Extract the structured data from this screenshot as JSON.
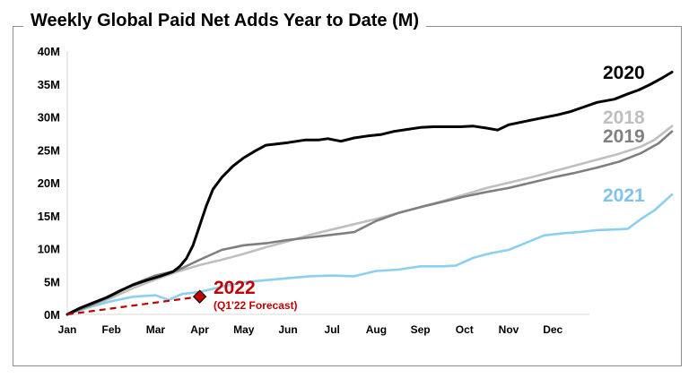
{
  "chart_data": {
    "type": "line",
    "title": "Weekly Global Paid Net Adds Year to Date (M)",
    "xlabel": "",
    "ylabel": "",
    "x_ticks": [
      "Jan",
      "Feb",
      "Mar",
      "Apr",
      "May",
      "Jun",
      "Jul",
      "Aug",
      "Sep",
      "Oct",
      "Nov",
      "Dec"
    ],
    "y_ticks": [
      "0M",
      "5M",
      "10M",
      "15M",
      "20M",
      "25M",
      "30M",
      "35M",
      "40M"
    ],
    "ylim": [
      0,
      40
    ],
    "grid": false,
    "legend": "labels at right end of each line",
    "series": [
      {
        "name": "2020",
        "color": "#000000",
        "label_color": "#000000",
        "points": [
          [
            0,
            0
          ],
          [
            0.3,
            1
          ],
          [
            0.6,
            1.8
          ],
          [
            0.9,
            2.6
          ],
          [
            1.2,
            3.6
          ],
          [
            1.5,
            4.5
          ],
          [
            1.8,
            5.2
          ],
          [
            2.1,
            5.8
          ],
          [
            2.4,
            6.5
          ],
          [
            2.55,
            7.3
          ],
          [
            2.7,
            8.5
          ],
          [
            2.85,
            10.5
          ],
          [
            3.0,
            13.5
          ],
          [
            3.15,
            16.5
          ],
          [
            3.3,
            19
          ],
          [
            3.5,
            20.8
          ],
          [
            3.75,
            22.5
          ],
          [
            4.0,
            23.8
          ],
          [
            4.25,
            24.8
          ],
          [
            4.5,
            25.7
          ],
          [
            5.0,
            26.1
          ],
          [
            5.4,
            26.5
          ],
          [
            5.7,
            26.5
          ],
          [
            5.9,
            26.7
          ],
          [
            6.2,
            26.3
          ],
          [
            6.5,
            26.8
          ],
          [
            6.8,
            27.1
          ],
          [
            7.1,
            27.3
          ],
          [
            7.4,
            27.8
          ],
          [
            7.7,
            28.1
          ],
          [
            8.0,
            28.4
          ],
          [
            8.3,
            28.5
          ],
          [
            8.6,
            28.5
          ],
          [
            8.9,
            28.5
          ],
          [
            9.2,
            28.6
          ],
          [
            9.5,
            28.3
          ],
          [
            9.75,
            28.0
          ],
          [
            10.0,
            28.8
          ],
          [
            10.5,
            29.5
          ],
          [
            10.8,
            29.9
          ],
          [
            11.1,
            30.3
          ],
          [
            11.4,
            30.8
          ],
          [
            11.7,
            31.5
          ],
          [
            12.0,
            32.2
          ],
          [
            12.4,
            32.7
          ],
          [
            12.7,
            33.5
          ],
          [
            12.95,
            34.1
          ],
          [
            13.2,
            34.9
          ],
          [
            13.5,
            36.0
          ],
          [
            13.7,
            36.8
          ]
        ]
      },
      {
        "name": "2018",
        "color": "#bfbfbf",
        "label_color": "#bfbfbf",
        "points": [
          [
            0,
            0
          ],
          [
            0.5,
            1.2
          ],
          [
            1.0,
            2.5
          ],
          [
            1.5,
            4.0
          ],
          [
            2.0,
            5.3
          ],
          [
            2.5,
            6.5
          ],
          [
            3.0,
            7.5
          ],
          [
            3.5,
            8.3
          ],
          [
            4.0,
            9.2
          ],
          [
            4.5,
            10.2
          ],
          [
            5.0,
            11.1
          ],
          [
            5.5,
            12.1
          ],
          [
            6.0,
            12.9
          ],
          [
            6.5,
            13.7
          ],
          [
            7.0,
            14.5
          ],
          [
            7.5,
            15.4
          ],
          [
            8.0,
            16.3
          ],
          [
            8.5,
            17.2
          ],
          [
            9.0,
            18.2
          ],
          [
            9.5,
            19.2
          ],
          [
            10.0,
            20.0
          ],
          [
            10.5,
            20.8
          ],
          [
            11.0,
            21.7
          ],
          [
            11.5,
            22.6
          ],
          [
            12.0,
            23.5
          ],
          [
            12.5,
            24.4
          ],
          [
            13.0,
            25.5
          ],
          [
            13.3,
            26.5
          ],
          [
            13.7,
            28.6
          ]
        ]
      },
      {
        "name": "2019",
        "color": "#7f7f7f",
        "label_color": "#808080",
        "points": [
          [
            0,
            0
          ],
          [
            0.5,
            1.3
          ],
          [
            1.0,
            2.8
          ],
          [
            1.5,
            4.6
          ],
          [
            2.0,
            5.9
          ],
          [
            2.5,
            6.7
          ],
          [
            3.0,
            8.3
          ],
          [
            3.5,
            9.8
          ],
          [
            4.0,
            10.5
          ],
          [
            4.5,
            10.8
          ],
          [
            5.0,
            11.3
          ],
          [
            5.5,
            11.7
          ],
          [
            6.0,
            12.1
          ],
          [
            6.5,
            12.5
          ],
          [
            7.0,
            14.2
          ],
          [
            7.5,
            15.4
          ],
          [
            8.0,
            16.3
          ],
          [
            8.5,
            17.1
          ],
          [
            9.0,
            17.9
          ],
          [
            9.5,
            18.6
          ],
          [
            10.0,
            19.2
          ],
          [
            10.5,
            20.0
          ],
          [
            11.0,
            20.8
          ],
          [
            11.5,
            21.5
          ],
          [
            12.0,
            22.3
          ],
          [
            12.5,
            23.2
          ],
          [
            13.0,
            24.5
          ],
          [
            13.4,
            26.0
          ],
          [
            13.7,
            27.8
          ]
        ]
      },
      {
        "name": "2021",
        "color": "#8ccff0",
        "label_color": "#7fc4ec",
        "points": [
          [
            0,
            0
          ],
          [
            0.5,
            1.1
          ],
          [
            1.0,
            2.0
          ],
          [
            1.5,
            2.7
          ],
          [
            2.0,
            2.9
          ],
          [
            2.3,
            2.2
          ],
          [
            2.6,
            3.1
          ],
          [
            3.0,
            3.4
          ],
          [
            3.5,
            4.2
          ],
          [
            4.0,
            4.9
          ],
          [
            4.5,
            5.2
          ],
          [
            5.0,
            5.5
          ],
          [
            5.5,
            5.8
          ],
          [
            6.0,
            5.9
          ],
          [
            6.5,
            5.8
          ],
          [
            7.0,
            6.6
          ],
          [
            7.5,
            6.8
          ],
          [
            8.0,
            7.3
          ],
          [
            8.5,
            7.3
          ],
          [
            8.8,
            7.4
          ],
          [
            9.2,
            8.6
          ],
          [
            9.6,
            9.3
          ],
          [
            10.0,
            9.8
          ],
          [
            10.4,
            10.9
          ],
          [
            10.8,
            12.0
          ],
          [
            11.2,
            12.3
          ],
          [
            11.6,
            12.5
          ],
          [
            12.0,
            12.8
          ],
          [
            12.4,
            12.9
          ],
          [
            12.7,
            13.0
          ],
          [
            13.0,
            14.5
          ],
          [
            13.3,
            15.8
          ],
          [
            13.7,
            18.2
          ]
        ]
      }
    ],
    "forecast": {
      "name": "2022",
      "sublabel": "(Q1'22 Forecast)",
      "color": "#c00000",
      "points": [
        [
          0,
          0
        ],
        [
          3.0,
          2.7
        ]
      ]
    }
  }
}
